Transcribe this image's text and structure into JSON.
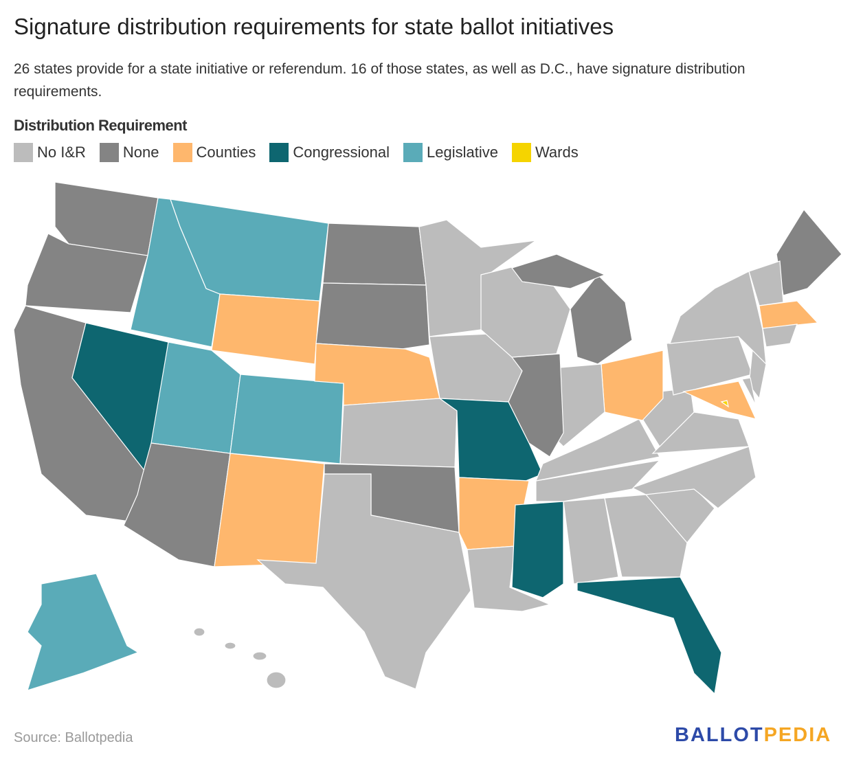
{
  "title": "Signature distribution requirements for state ballot initiatives",
  "subtitle": "26 states provide for a state initiative or referendum. 16 of those states, as well as D.C., have signature distribution requirements.",
  "legend": {
    "title": "Distribution Requirement",
    "items": [
      {
        "key": "noir",
        "label": "No I&R",
        "color": "#bcbcbc"
      },
      {
        "key": "none",
        "label": "None",
        "color": "#848484"
      },
      {
        "key": "counties",
        "label": "Counties",
        "color": "#feb76d"
      },
      {
        "key": "congressional",
        "label": "Congressional",
        "color": "#0e6670"
      },
      {
        "key": "legislative",
        "label": "Legislative",
        "color": "#5aabb8"
      },
      {
        "key": "wards",
        "label": "Wards",
        "color": "#f5d400"
      }
    ]
  },
  "states": [
    {
      "name": "WA",
      "category": "none"
    },
    {
      "name": "OR",
      "category": "none"
    },
    {
      "name": "CA",
      "category": "none"
    },
    {
      "name": "NV",
      "category": "congressional"
    },
    {
      "name": "ID",
      "category": "legislative"
    },
    {
      "name": "MT",
      "category": "legislative"
    },
    {
      "name": "WY",
      "category": "counties"
    },
    {
      "name": "UT",
      "category": "legislative"
    },
    {
      "name": "CO",
      "category": "legislative"
    },
    {
      "name": "AZ",
      "category": "none"
    },
    {
      "name": "NM",
      "category": "counties"
    },
    {
      "name": "ND",
      "category": "none"
    },
    {
      "name": "SD",
      "category": "none"
    },
    {
      "name": "NE",
      "category": "counties"
    },
    {
      "name": "KS",
      "category": "noir"
    },
    {
      "name": "OK",
      "category": "none"
    },
    {
      "name": "TX",
      "category": "noir"
    },
    {
      "name": "MN",
      "category": "noir"
    },
    {
      "name": "IA",
      "category": "noir"
    },
    {
      "name": "MO",
      "category": "congressional"
    },
    {
      "name": "AR",
      "category": "counties"
    },
    {
      "name": "LA",
      "category": "noir"
    },
    {
      "name": "MS",
      "category": "congressional"
    },
    {
      "name": "AL",
      "category": "noir"
    },
    {
      "name": "GA",
      "category": "noir"
    },
    {
      "name": "FL",
      "category": "congressional"
    },
    {
      "name": "SC",
      "category": "noir"
    },
    {
      "name": "NC",
      "category": "noir"
    },
    {
      "name": "TN",
      "category": "noir"
    },
    {
      "name": "KY",
      "category": "noir"
    },
    {
      "name": "VA",
      "category": "noir"
    },
    {
      "name": "WV",
      "category": "noir"
    },
    {
      "name": "OH",
      "category": "counties"
    },
    {
      "name": "IN",
      "category": "noir"
    },
    {
      "name": "IL",
      "category": "none"
    },
    {
      "name": "WI",
      "category": "noir"
    },
    {
      "name": "MI",
      "category": "none"
    },
    {
      "name": "MI-UP",
      "category": "none"
    },
    {
      "name": "PA",
      "category": "noir"
    },
    {
      "name": "NY",
      "category": "noir"
    },
    {
      "name": "ME",
      "category": "none"
    },
    {
      "name": "VT-NH",
      "category": "noir"
    },
    {
      "name": "MA",
      "category": "counties"
    },
    {
      "name": "CT-RI",
      "category": "noir"
    },
    {
      "name": "NJ",
      "category": "noir"
    },
    {
      "name": "MD",
      "category": "counties"
    },
    {
      "name": "DE",
      "category": "noir"
    },
    {
      "name": "DC",
      "category": "wards"
    },
    {
      "name": "AK",
      "category": "legislative"
    },
    {
      "name": "HI",
      "category": "noir"
    }
  ],
  "source": "Source: Ballotpedia",
  "logo": {
    "part1": "BALLOT",
    "part2": "PEDIA",
    "color1": "#2d4aa8",
    "color2": "#f5a623"
  }
}
